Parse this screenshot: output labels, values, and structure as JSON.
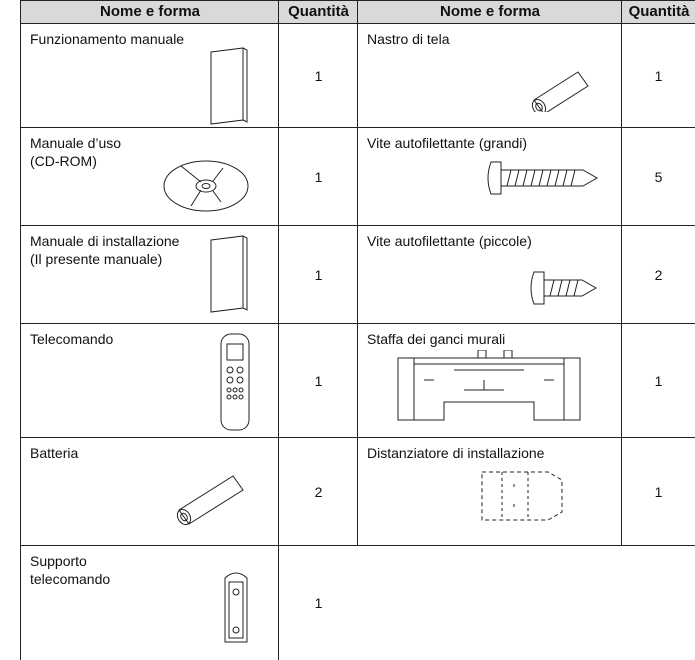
{
  "header": [
    "Nome e forma",
    "Quantità",
    "Nome e forma",
    "Quantità"
  ],
  "left": [
    {
      "name": "Funzionamento manuale",
      "quantity": 1
    },
    {
      "name": "Manuale d’uso\n(CD-ROM)",
      "quantity": 1
    },
    {
      "name": "Manuale di installazione\n(Il presente manuale)",
      "quantity": 1
    },
    {
      "name": "Telecomando",
      "quantity": 1
    },
    {
      "name": "Batteria",
      "quantity": 2
    },
    {
      "name": "Supporto\ntelecomando",
      "quantity": 1
    }
  ],
  "right": [
    {
      "name": "Nastro di tela",
      "quantity": 1
    },
    {
      "name": "Vite autofilettante (grandi)",
      "quantity": 5
    },
    {
      "name": "Vite autofilettante (piccole)",
      "quantity": 2
    },
    {
      "name": "Staffa dei ganci murali",
      "quantity": 1
    },
    {
      "name": "Distanziatore di installazione",
      "quantity": 1
    }
  ]
}
